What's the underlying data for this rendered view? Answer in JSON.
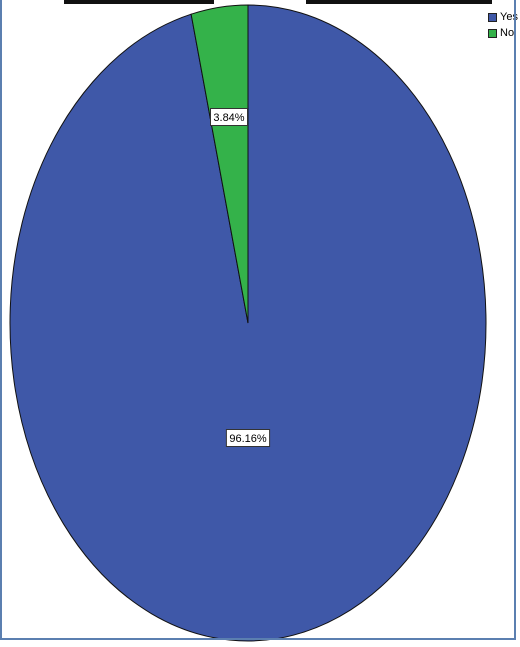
{
  "chart_data": {
    "type": "pie",
    "categories": [
      "Yes",
      "No"
    ],
    "values": [
      96.16,
      3.84
    ],
    "data_labels": [
      "96.16%",
      "3.84%"
    ],
    "colors": [
      "#3f58a8",
      "#34b24a"
    ],
    "legend_placement": "top-right",
    "grid": false
  },
  "legend": {
    "items": [
      {
        "label": "Yes",
        "color": "#3f58a8"
      },
      {
        "label": "No",
        "color": "#34b24a"
      }
    ]
  }
}
